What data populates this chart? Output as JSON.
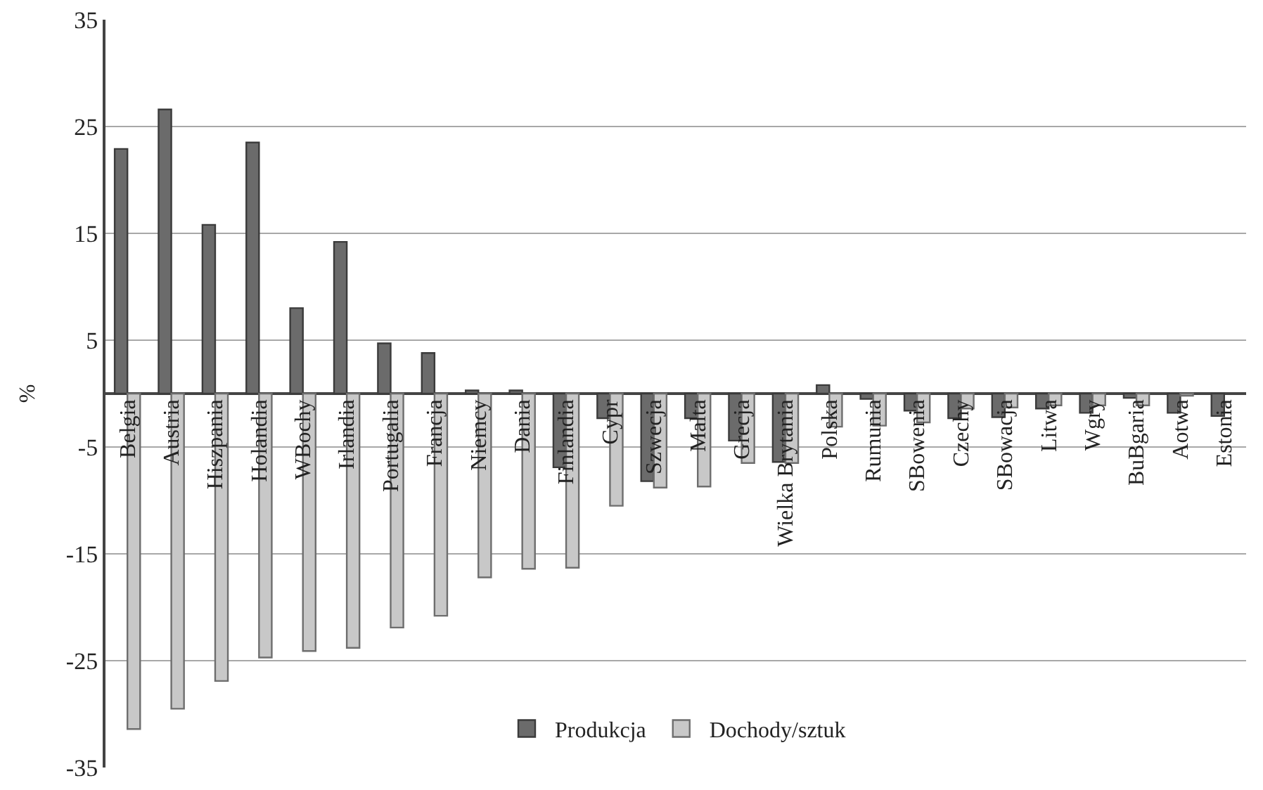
{
  "chart_data": {
    "type": "bar",
    "ylabel": "%",
    "categories": [
      "Belgia",
      "Austria",
      "Hiszpania",
      "Holandia",
      "WBochy",
      "Irlandia",
      "Portugalia",
      "Francja",
      "Niemcy",
      "Dania",
      "Finlandia",
      "Cypr",
      "Szwecja",
      "Malta",
      "Grecja",
      "Wielka Brytania",
      "Polska",
      "Rumunia",
      "SBowenia",
      "Czechy",
      "SBowacja",
      "Litwa",
      "Wgry",
      "BuBgaria",
      "Aotwa",
      "Estonia"
    ],
    "series": [
      {
        "name": "Produkcja",
        "color": "#6b6b6b",
        "values": [
          22.9,
          26.6,
          15.8,
          23.5,
          8.0,
          14.2,
          4.7,
          3.8,
          0.3,
          0.3,
          -6.9,
          -2.3,
          -8.2,
          -2.3,
          -4.4,
          -6.4,
          0.8,
          -0.5,
          -1.6,
          -2.3,
          -2.2,
          -1.4,
          -1.8,
          -0.4,
          -1.8,
          -2.1
        ]
      },
      {
        "name": "Dochody/sztuk",
        "color": "#c8c8c8",
        "values": [
          -31.4,
          -29.5,
          -26.9,
          -24.7,
          -24.1,
          -23.8,
          -21.9,
          -20.8,
          -17.2,
          -16.4,
          -16.3,
          -10.5,
          -8.8,
          -8.7,
          -6.5,
          -6.5,
          -3.1,
          -3.0,
          -2.7,
          -1.4,
          -1.3,
          -1.1,
          -1.1,
          -1.1,
          -0.2,
          null
        ]
      }
    ],
    "ylim": [
      -35,
      35
    ],
    "yticks": [
      -35,
      -25,
      -15,
      -5,
      5,
      15,
      25,
      35
    ],
    "grid": "y",
    "legend": "bottom"
  }
}
